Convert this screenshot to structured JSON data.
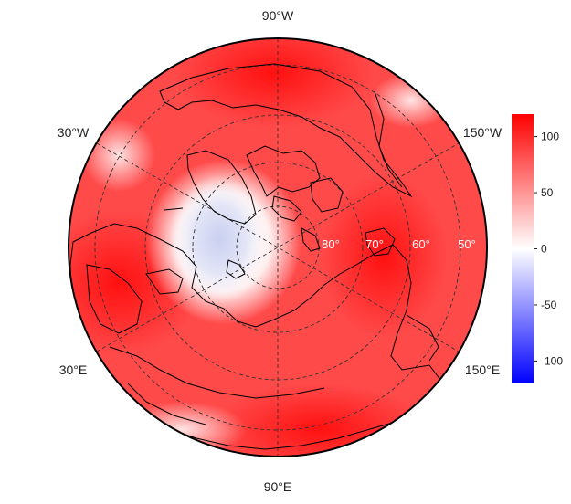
{
  "map": {
    "projection": "north-polar-stereographic",
    "longitude_labels": [
      {
        "id": "lon-90w",
        "text": "90°W"
      },
      {
        "id": "lon-30w",
        "text": "30°W"
      },
      {
        "id": "lon-150w",
        "text": "150°W"
      },
      {
        "id": "lon-30e",
        "text": "30°E"
      },
      {
        "id": "lon-150e",
        "text": "150°E"
      },
      {
        "id": "lon-90e",
        "text": "90°E"
      }
    ],
    "latitude_labels": [
      {
        "id": "lat-80",
        "text": "80°"
      },
      {
        "id": "lat-70",
        "text": "70°"
      },
      {
        "id": "lat-60",
        "text": "60°"
      },
      {
        "id": "lat-50",
        "text": "50°"
      }
    ],
    "field_description": "anomaly field, mostly positive (red) with a negative (blue) region over the Canadian Arctic / Greenland side"
  },
  "colorbar": {
    "min": -120,
    "max": 120,
    "ticks": [
      "100",
      "50",
      "0",
      "-50",
      "-100"
    ],
    "tick_values": [
      100,
      50,
      0,
      -50,
      -100
    ],
    "low_color": "#0000ff",
    "mid_color": "#ffffff",
    "high_color": "#ff0000"
  }
}
